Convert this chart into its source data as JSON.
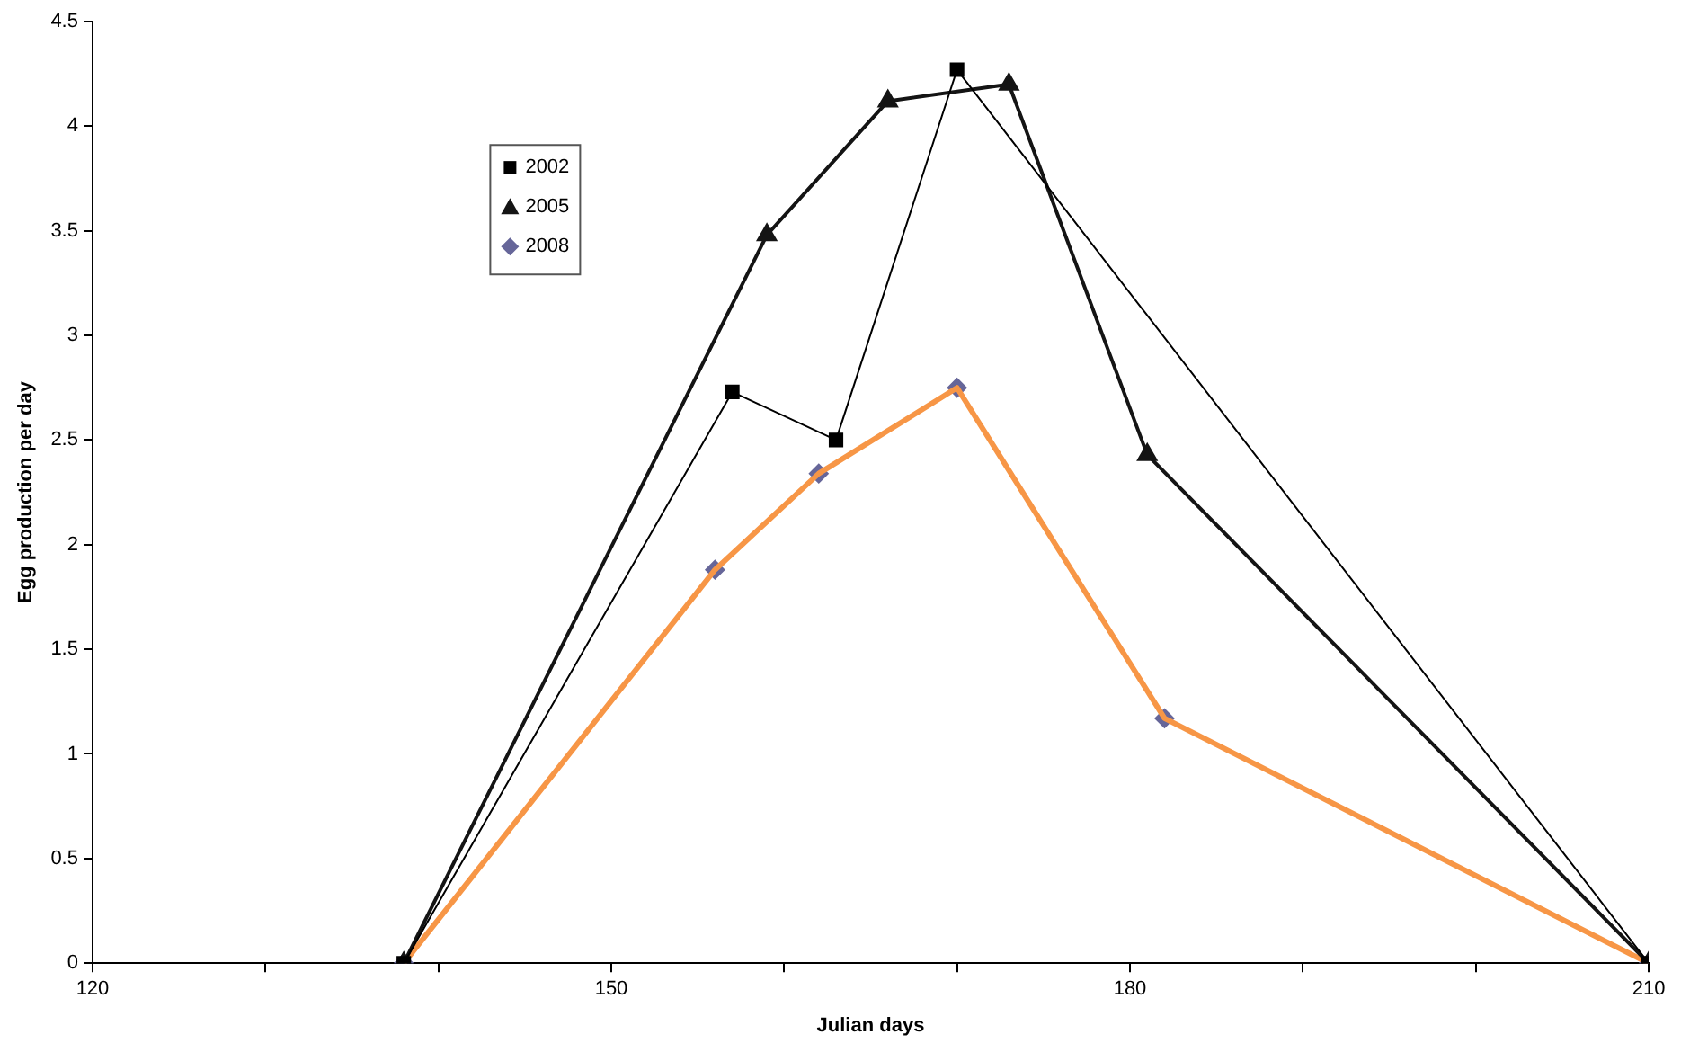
{
  "chart_data": {
    "type": "line",
    "xlabel": "Julian days",
    "ylabel": "Egg production per day",
    "xlim": [
      120,
      210
    ],
    "ylim": [
      0,
      4.5
    ],
    "xticks": [
      120,
      {
        "value": 130,
        "label": null
      },
      {
        "value": 140,
        "label": null
      },
      150,
      {
        "value": 160,
        "label": null
      },
      {
        "value": 170,
        "label": null
      },
      180,
      {
        "value": 190,
        "label": null
      },
      {
        "value": 200,
        "label": null
      },
      210
    ],
    "yticks": [
      0,
      0.5,
      1,
      1.5,
      2,
      2.5,
      3,
      3.5,
      4,
      4.5
    ],
    "grid": false,
    "legend": "top left",
    "series": [
      {
        "name": "2002",
        "color": "#000000",
        "marker": "square",
        "x": [
          138,
          157,
          163,
          170,
          210
        ],
        "values": [
          0,
          2.73,
          2.5,
          4.27,
          0
        ]
      },
      {
        "name": "2005",
        "color": "#141414",
        "marker": "triangle",
        "x": [
          138,
          159,
          166,
          173,
          181,
          210
        ],
        "values": [
          0,
          3.48,
          4.12,
          4.2,
          2.43,
          0
        ]
      },
      {
        "color": "#f79646",
        "marker": "none",
        "x": [
          138,
          156,
          162,
          170,
          182,
          210
        ],
        "values": [
          0,
          1.88,
          2.34,
          2.75,
          1.17,
          0
        ]
      },
      {
        "name": "2008",
        "type": "scatter",
        "color": "#666699",
        "marker": "diamond",
        "x": [
          138,
          156,
          162,
          170,
          182,
          210
        ],
        "values": [
          0,
          1.88,
          2.34,
          2.75,
          1.17,
          0
        ]
      }
    ]
  }
}
